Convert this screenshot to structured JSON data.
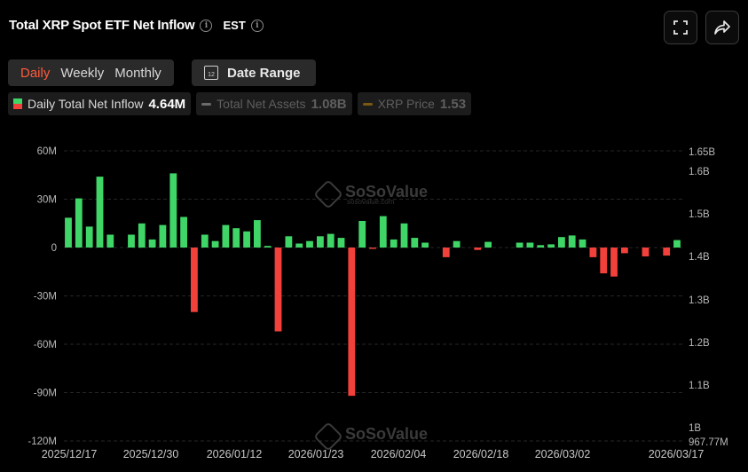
{
  "header": {
    "title": "Total XRP Spot ETF Net Inflow",
    "timezone": "EST"
  },
  "toolbar": {
    "fullscreen_icon": "fullscreen-icon",
    "share_icon": "share-icon"
  },
  "periods": [
    {
      "label": "Daily",
      "active": true
    },
    {
      "label": "Weekly",
      "active": false
    },
    {
      "label": "Monthly",
      "active": false
    }
  ],
  "date_range": {
    "label": "Date Range",
    "icon": "calendar-icon",
    "icon_text": "12"
  },
  "legend": [
    {
      "name": "Daily Total Net Inflow",
      "value": "4.64M",
      "active": true
    },
    {
      "name": "Total Net Assets",
      "value": "1.08B",
      "active": false
    },
    {
      "name": "XRP Price",
      "value": "1.53",
      "active": false
    }
  ],
  "watermark": {
    "text": "SoSoValue",
    "sub": "sosovalue.com"
  },
  "colors": {
    "positive": "#3fd667",
    "negative": "#f2403a",
    "accent": "#ff5a3c",
    "assets_line": "#6b6b6b",
    "price_line": "#7a5a12"
  },
  "chart_data": {
    "type": "bar",
    "title": "Total XRP Spot ETF Net Inflow",
    "x_tick_labels": [
      "2025/12/17",
      "2025/12/30",
      "2026/01/12",
      "2026/01/23",
      "2026/02/04",
      "2026/02/18",
      "2026/03/02",
      "2026/03/17"
    ],
    "y_left": {
      "tick_labels": [
        "60M",
        "30M",
        "0",
        "-30M",
        "-60M",
        "-90M",
        "-120M"
      ],
      "ticks": [
        60,
        30,
        0,
        -30,
        -60,
        -90,
        -120
      ],
      "ylim": [
        -120,
        60
      ],
      "unit": "M"
    },
    "y_right": {
      "tick_labels": [
        "1.65B",
        "1.6B",
        "1.5B",
        "1.4B",
        "1.3B",
        "1.2B",
        "1.1B",
        "1B",
        "967.77M"
      ]
    },
    "grid": true,
    "series": [
      {
        "name": "Daily Total Net Inflow",
        "values": [
          18.5,
          30.5,
          13,
          44,
          8,
          0,
          8,
          15,
          5,
          14,
          46,
          19,
          -40,
          8,
          4,
          14,
          12,
          10,
          17,
          1,
          -52,
          7,
          2.5,
          4,
          7,
          8.5,
          6,
          -92,
          16.5,
          -0.5,
          19.5,
          5,
          15,
          6,
          3,
          0,
          -6,
          4,
          0,
          -1.5,
          3.5,
          0,
          0,
          3,
          3,
          1.5,
          2,
          6.5,
          7.5,
          5,
          -6,
          -16,
          -18,
          -3.5,
          0,
          -5.5,
          0,
          -5,
          4.6
        ]
      }
    ]
  }
}
